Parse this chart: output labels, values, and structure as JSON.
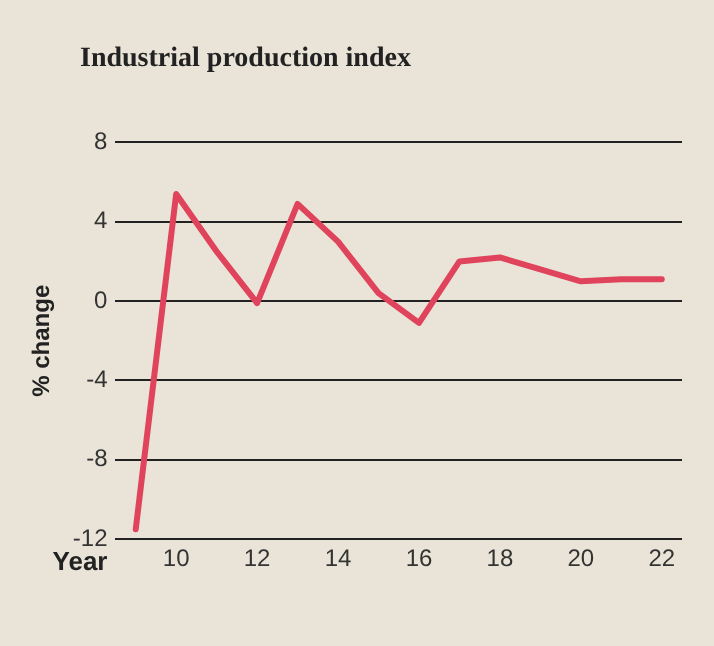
{
  "chart_data": {
    "type": "line",
    "title": "Industrial production index",
    "xlabel": "Year",
    "ylabel": "% change",
    "x": [
      9,
      10,
      11,
      12,
      13,
      14,
      15,
      16,
      17,
      18,
      19,
      20,
      21,
      22
    ],
    "series": [
      {
        "color": "#e0435c",
        "values": [
          -11.5,
          5.4,
          2.5,
          -0.1,
          4.9,
          3.0,
          0.4,
          -1.1,
          2.0,
          2.2,
          1.6,
          1.0,
          1.1,
          1.1
        ]
      }
    ],
    "xlim": [
      8.5,
      22.5
    ],
    "xticks": [
      10,
      12,
      14,
      16,
      18,
      20,
      22
    ],
    "ylim": [
      -12,
      8
    ],
    "yticks": [
      -12,
      -8,
      -4,
      0,
      4,
      8
    ],
    "grid": "y",
    "legend": false,
    "marker": "none",
    "line_style": "solid"
  }
}
